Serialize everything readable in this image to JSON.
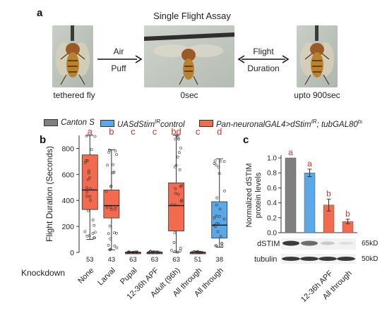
{
  "panel_a": {
    "letter": "a",
    "title": "Single Flight Assay",
    "left_caption": "tethered fly",
    "center_caption": "0sec",
    "right_caption": "upto 900sec",
    "arrow1_line1": "Air",
    "arrow1_line2": "Puff",
    "arrow2_line1": "Flight",
    "arrow2_line2": "Duration"
  },
  "legend": {
    "items": [
      {
        "label": "Canton S",
        "color": "#7f7f7f"
      },
      {
        "label": "UASdStim",
        "sup": "IR",
        "label_tail": "control",
        "color": "#5aa9e6"
      },
      {
        "label": "Pan-neuronalGAL4>dStim",
        "sup": "IR",
        "label_tail": "; tubGAL80",
        "sup2": "ts",
        "color": "#f26b4f"
      }
    ]
  },
  "panel_b": {
    "letter": "b",
    "row_label": "Knockdown",
    "chart_data": {
      "type": "box",
      "ylabel": "Flight Duration (Seconds)",
      "ylim": [
        0,
        900
      ],
      "yticks": [
        0,
        200,
        400,
        600,
        800
      ],
      "categories": [
        "None",
        "Larval",
        "Pupal",
        "12-36h APF",
        "Adult (96h)",
        "All through",
        "All through"
      ],
      "n": [
        "53",
        "43",
        "63",
        "63",
        "63",
        "51",
        "38"
      ],
      "letters": [
        "a",
        "b",
        "c",
        "c",
        "bd",
        "c",
        "d"
      ],
      "series": [
        {
          "name": "Pan-neuronalGAL4>dStimIR; tubGAL80ts",
          "category_indices": [
            0,
            1,
            2,
            3,
            4,
            5
          ],
          "color": "#f26b4f"
        },
        {
          "name": "UASdStimIR control",
          "category_indices": [
            6
          ],
          "color": "#5aa9e6"
        }
      ],
      "boxes": [
        {
          "min": 100,
          "q1": 330,
          "median": 480,
          "q3": 750,
          "max": 900,
          "mean": 500
        },
        {
          "min": 20,
          "q1": 265,
          "median": 360,
          "q3": 480,
          "max": 790,
          "mean": 370
        },
        {
          "min": 0,
          "q1": 0,
          "median": 0,
          "q3": 0,
          "max": 5,
          "mean": 0
        },
        {
          "min": 0,
          "q1": 0,
          "median": 0,
          "q3": 0,
          "max": 10,
          "mean": 0
        },
        {
          "min": 0,
          "q1": 165,
          "median": 360,
          "q3": 535,
          "max": 900,
          "mean": 360
        },
        {
          "min": 0,
          "q1": 0,
          "median": 0,
          "q3": 0,
          "max": 8,
          "mean": 0
        },
        {
          "min": 40,
          "q1": 110,
          "median": 210,
          "q3": 390,
          "max": 720,
          "mean": 235
        }
      ]
    }
  },
  "panel_c": {
    "letter": "c",
    "chart_data": {
      "type": "bar",
      "ylabel_line1": "Normalized dSTIM",
      "ylabel_line2": "protein levels",
      "ylim": [
        0,
        1.0
      ],
      "yticks": [
        "0.0",
        "0.2",
        "0.4",
        "0.6",
        "0.8",
        "1.0"
      ],
      "ytick_values": [
        0,
        0.2,
        0.4,
        0.6,
        0.8,
        1.0
      ],
      "categories": [
        "",
        "",
        "12-36h APF",
        "All through"
      ],
      "values": [
        1.0,
        0.8,
        0.37,
        0.15
      ],
      "errors": [
        0.0,
        0.05,
        0.08,
        0.03
      ],
      "colors": [
        "#7f7f7f",
        "#5aa9e6",
        "#f26b4f",
        "#f26b4f"
      ],
      "letters": [
        "a",
        "a",
        "b",
        "b"
      ]
    },
    "blot": {
      "row1_label": "dSTIM",
      "row1_kd": "65kD",
      "row2_label": "tubulin",
      "row2_kd": "50kD"
    }
  }
}
